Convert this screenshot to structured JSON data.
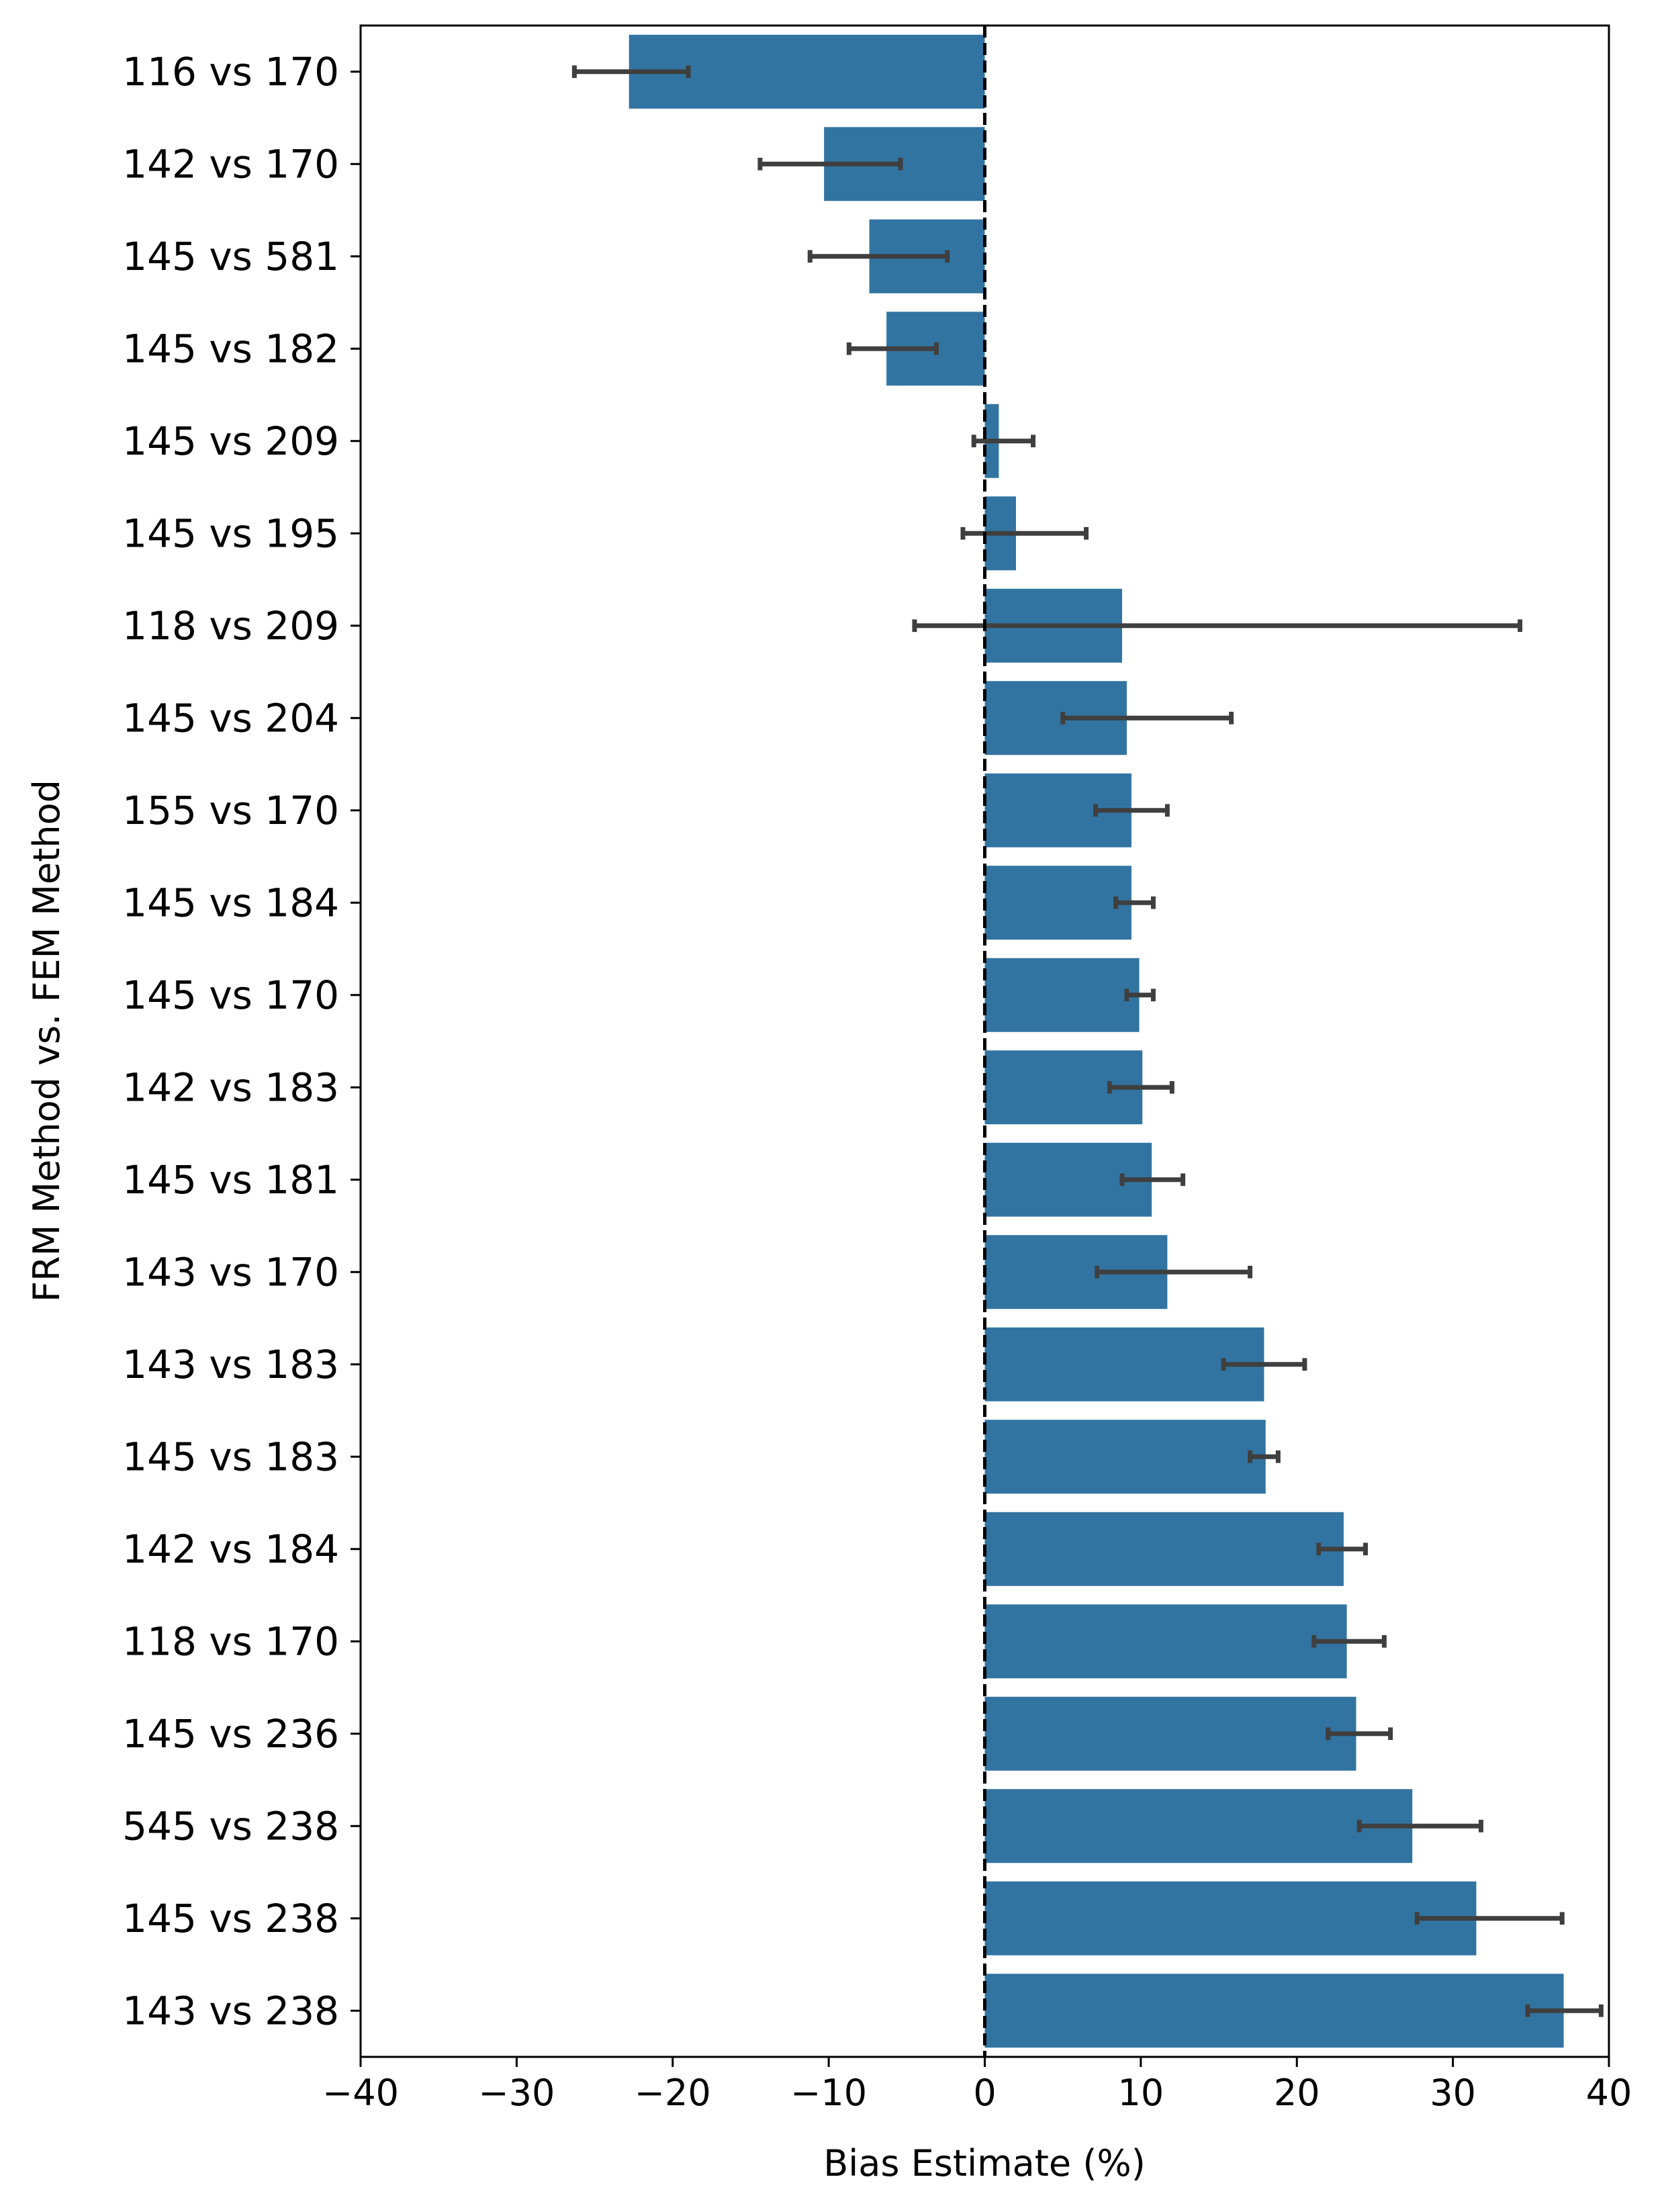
{
  "chart_data": {
    "type": "bar",
    "orientation": "horizontal",
    "title": "",
    "xlabel": "Bias Estimate (%)",
    "ylabel": "FRM Method vs. FEM Method",
    "xlim": [
      -40,
      40
    ],
    "xticks": [
      -40,
      -30,
      -20,
      -10,
      0,
      10,
      20,
      30,
      40
    ],
    "xtick_labels": [
      "−40",
      "−30",
      "−20",
      "−10",
      "0",
      "10",
      "20",
      "30",
      "40"
    ],
    "grid": false,
    "legend": "none",
    "reference_line": {
      "x": 0,
      "style": "dashed",
      "color": "#000000"
    },
    "bar_color": "#3274a1",
    "errorbar_color": "#3f3f3f",
    "categories": [
      "116 vs 170",
      "142 vs 170",
      "145 vs 581",
      "145 vs 182",
      "145 vs 209",
      "145 vs 195",
      "118 vs 209",
      "145 vs 204",
      "155 vs 170",
      "145 vs 184",
      "145 vs 170",
      "142 vs 183",
      "145 vs 181",
      "143 vs 170",
      "143 vs 183",
      "145 vs 183",
      "142 vs 184",
      "118 vs 170",
      "145 vs 236",
      "545 vs 238",
      "145 vs 238",
      "143 vs 238"
    ],
    "values": [
      -22.8,
      -10.3,
      -7.4,
      -6.3,
      0.9,
      2.0,
      8.8,
      9.1,
      9.4,
      9.4,
      9.9,
      10.1,
      10.7,
      11.7,
      17.9,
      18.0,
      23.0,
      23.2,
      23.8,
      27.4,
      31.5,
      37.1
    ],
    "ci_low": [
      -26.3,
      -14.4,
      -11.2,
      -8.7,
      -0.7,
      -1.4,
      -4.5,
      5.0,
      7.1,
      8.4,
      9.1,
      8.0,
      8.8,
      7.2,
      15.3,
      17.0,
      21.4,
      21.1,
      22.0,
      24.0,
      27.7,
      34.8
    ],
    "ci_high": [
      -19.0,
      -5.4,
      -2.4,
      -3.1,
      3.1,
      6.5,
      34.3,
      15.8,
      11.7,
      10.8,
      10.8,
      12.0,
      12.7,
      17.0,
      20.5,
      18.8,
      24.4,
      25.6,
      26.0,
      31.8,
      37.0,
      39.5
    ]
  }
}
